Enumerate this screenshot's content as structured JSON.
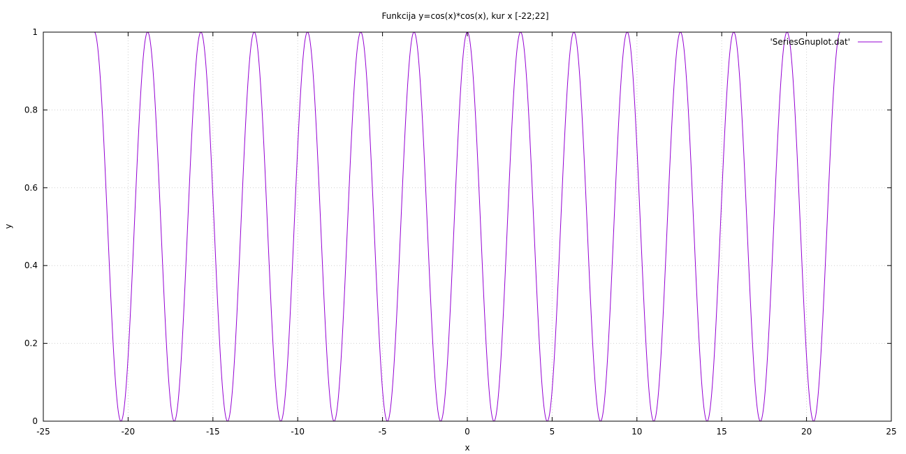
{
  "chart_data": {
    "type": "line",
    "title": "Funkcija y=cos(x)*cos(x), kur x [-22;22]",
    "xlabel": "x",
    "ylabel": "y",
    "xlim": [
      -25,
      25
    ],
    "ylim": [
      0,
      1
    ],
    "xticks": [
      -25,
      -20,
      -15,
      -10,
      -5,
      0,
      5,
      10,
      15,
      20,
      25
    ],
    "yticks": [
      0,
      0.2,
      0.4,
      0.6,
      0.8,
      1
    ],
    "ytick_labels": [
      "0",
      "0.2",
      "0.4",
      "0.6",
      "0.8",
      "1"
    ],
    "grid": true,
    "legend_position": "top-right",
    "series": [
      {
        "name": "'SeriesGnuplot.dat'",
        "color": "#9400d3",
        "function": "cos(x)*cos(x)",
        "x_range": [
          -22,
          22
        ]
      }
    ]
  }
}
